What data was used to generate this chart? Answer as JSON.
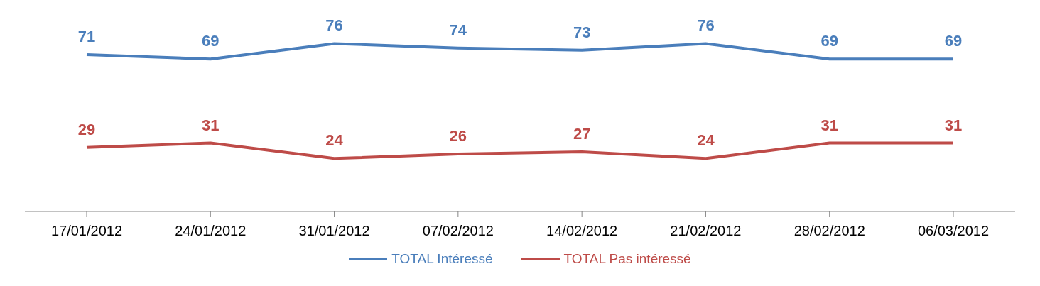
{
  "chart_data": {
    "type": "line",
    "categories": [
      "17/01/2012",
      "24/01/2012",
      "31/01/2012",
      "07/02/2012",
      "14/02/2012",
      "21/02/2012",
      "28/02/2012",
      "06/03/2012"
    ],
    "series": [
      {
        "name": "TOTAL Intéressé",
        "color": "#4a7ebb",
        "values": [
          71,
          69,
          76,
          74,
          73,
          76,
          69,
          69
        ]
      },
      {
        "name": "TOTAL Pas intéressé",
        "color": "#be4b48",
        "values": [
          29,
          31,
          24,
          26,
          27,
          24,
          31,
          31
        ]
      }
    ],
    "data_labels": true,
    "legend": "bottom",
    "grid": false,
    "marker": "none",
    "line_style": "solid",
    "tick_labels": "x"
  }
}
